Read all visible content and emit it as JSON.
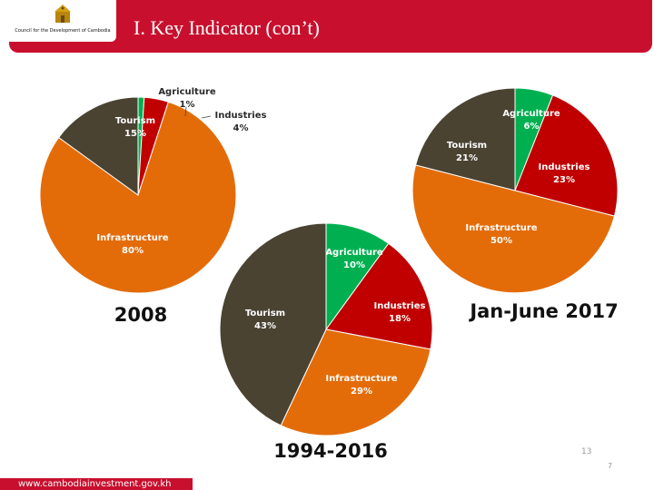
{
  "header": {
    "title": "I. Key Indicator (con’t)",
    "logo_caption": "Council for the Development of Cambodia"
  },
  "footer": {
    "url": "www.cambodiainvestment.gov.kh",
    "page_number": "13",
    "page_mark": "7"
  },
  "colors": {
    "header_red": "#c8102e",
    "agriculture": "#00b050",
    "industries": "#c00000",
    "infrastructure": "#e36c09",
    "tourism": "#4a4332"
  },
  "chart_data": [
    {
      "type": "pie",
      "title": "2008",
      "labels": [
        "Agriculture",
        "Industries",
        "Infrastructure",
        "Tourism"
      ],
      "values": [
        1,
        4,
        80,
        15
      ],
      "value_labels": [
        "1%",
        "4%",
        "80%",
        "15%"
      ]
    },
    {
      "type": "pie",
      "title": "1994-2016",
      "labels": [
        "Agriculture",
        "Industries",
        "Infrastructure",
        "Tourism"
      ],
      "values": [
        10,
        18,
        29,
        43
      ],
      "value_labels": [
        "10%",
        "18%",
        "29%",
        "43%"
      ]
    },
    {
      "type": "pie",
      "title": "Jan-June 2017",
      "labels": [
        "Agriculture",
        "Industries",
        "Infrastructure",
        "Tourism"
      ],
      "values": [
        6,
        23,
        50,
        21
      ],
      "value_labels": [
        "6%",
        "23%",
        "50%",
        "21%"
      ]
    }
  ]
}
